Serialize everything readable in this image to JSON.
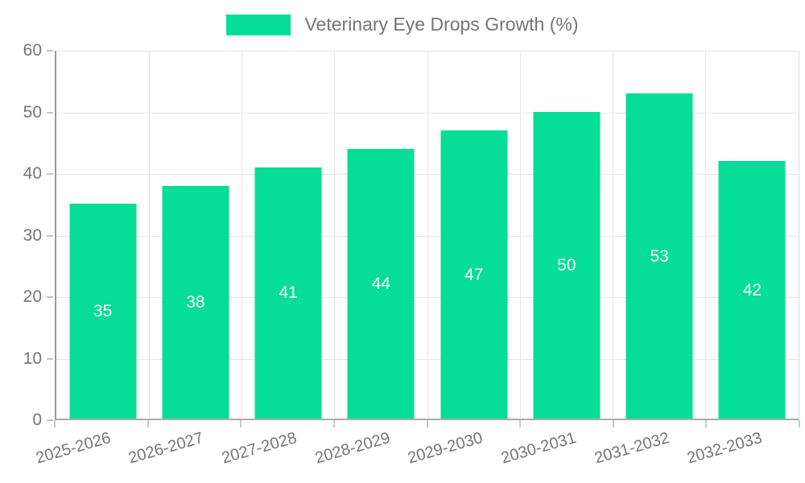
{
  "chart_data": {
    "type": "bar",
    "title": "Veterinary Eye Drops Growth (%)",
    "categories": [
      "2025-2026",
      "2026-2027",
      "2027-2028",
      "2028-2029",
      "2029-2030",
      "2030-2031",
      "2031-2032",
      "2032-2033"
    ],
    "values": [
      35,
      38,
      41,
      44,
      47,
      50,
      53,
      42
    ],
    "xlabel": "",
    "ylabel": "",
    "ylim": [
      0,
      60
    ],
    "yticks": [
      0,
      10,
      20,
      30,
      40,
      50,
      60
    ],
    "grid": true,
    "legend_position": "top-center",
    "bar_color": "#06dd96",
    "value_label_color": "#ffffff",
    "axis_label_color": "#757575",
    "value_labels_shown": true
  }
}
